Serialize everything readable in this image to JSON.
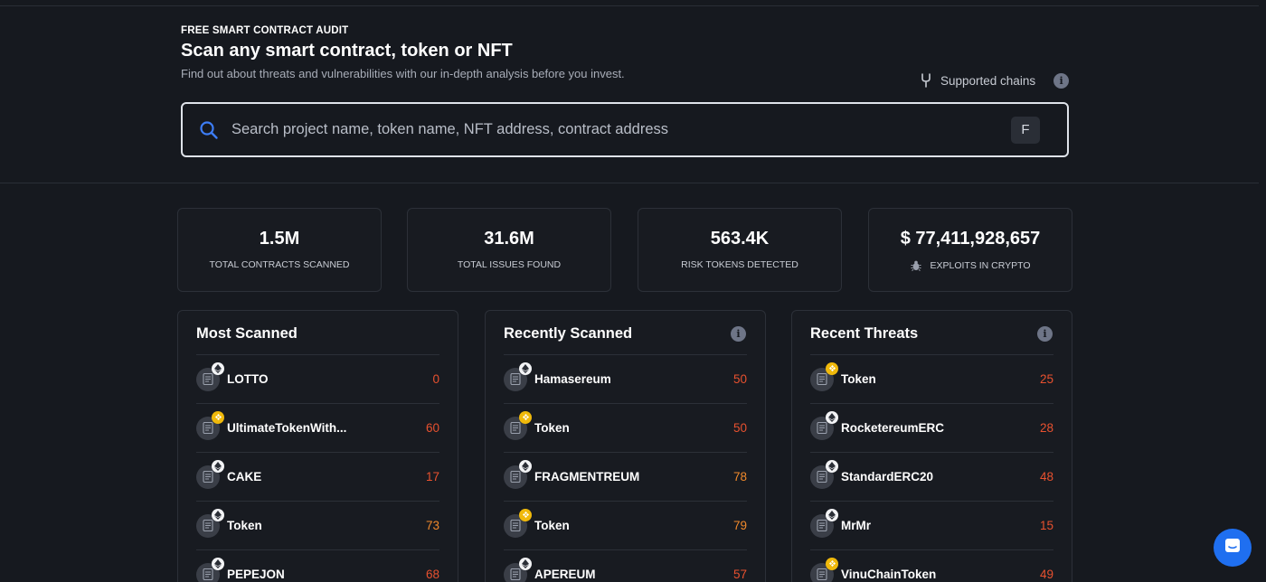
{
  "hero": {
    "eyebrow": "FREE SMART CONTRACT AUDIT",
    "title": "Scan any smart contract, token or NFT",
    "subtitle": "Find out about threats and vulnerabilities with our in-depth analysis before you invest.",
    "supported_chains_label": "Supported chains",
    "supported_chains_icon": "fork-icon",
    "info_glyph": "i"
  },
  "search": {
    "placeholder": "Search project name, token name, NFT address, contract address",
    "shortcut_key": "F",
    "icon": "search-icon"
  },
  "stats": [
    {
      "value": "1.5M",
      "label": "TOTAL CONTRACTS SCANNED"
    },
    {
      "value": "31.6M",
      "label": "TOTAL ISSUES FOUND"
    },
    {
      "value": "563.4K",
      "label": "RISK TOKENS DETECTED"
    },
    {
      "value": "$ 77,411,928,657",
      "label": "EXPLOITS IN CRYPTO",
      "icon": "bug-icon"
    }
  ],
  "colors": {
    "background": "#16191f",
    "card": "#181b21",
    "border": "#2c3038",
    "score_red": "#e8512f",
    "score_orange": "#f0892b",
    "accent_blue": "#1f6ff0",
    "search_icon": "#3d7df6"
  },
  "panels": {
    "most_scanned": {
      "title": "Most Scanned",
      "items": [
        {
          "name": "LOTTO",
          "score": "0",
          "chain": "eth",
          "level": "red"
        },
        {
          "name": "UltimateTokenWith...",
          "score": "60",
          "chain": "bnb",
          "level": "red"
        },
        {
          "name": "CAKE",
          "score": "17",
          "chain": "eth",
          "level": "red"
        },
        {
          "name": "Token",
          "score": "73",
          "chain": "eth",
          "level": "orange"
        },
        {
          "name": "PEPEJON",
          "score": "68",
          "chain": "eth",
          "level": "red"
        }
      ]
    },
    "recently_scanned": {
      "title": "Recently Scanned",
      "items": [
        {
          "name": "Hamasereum",
          "score": "50",
          "chain": "eth",
          "level": "red"
        },
        {
          "name": "Token",
          "score": "50",
          "chain": "bnb",
          "level": "red"
        },
        {
          "name": "FRAGMENTREUM",
          "score": "78",
          "chain": "eth",
          "level": "orange"
        },
        {
          "name": "Token",
          "score": "79",
          "chain": "bnb",
          "level": "orange"
        },
        {
          "name": "APEREUM",
          "score": "57",
          "chain": "eth",
          "level": "red"
        }
      ]
    },
    "recent_threats": {
      "title": "Recent Threats",
      "items": [
        {
          "name": "Token",
          "score": "25",
          "chain": "bnb",
          "level": "red"
        },
        {
          "name": "RocketereumERC",
          "score": "28",
          "chain": "eth",
          "level": "red"
        },
        {
          "name": "StandardERC20",
          "score": "48",
          "chain": "eth",
          "level": "red"
        },
        {
          "name": "MrMr",
          "score": "15",
          "chain": "eth",
          "level": "red"
        },
        {
          "name": "VinuChainToken",
          "score": "49",
          "chain": "bnb",
          "level": "red"
        }
      ]
    }
  },
  "chat": {
    "icon": "chat-icon"
  }
}
